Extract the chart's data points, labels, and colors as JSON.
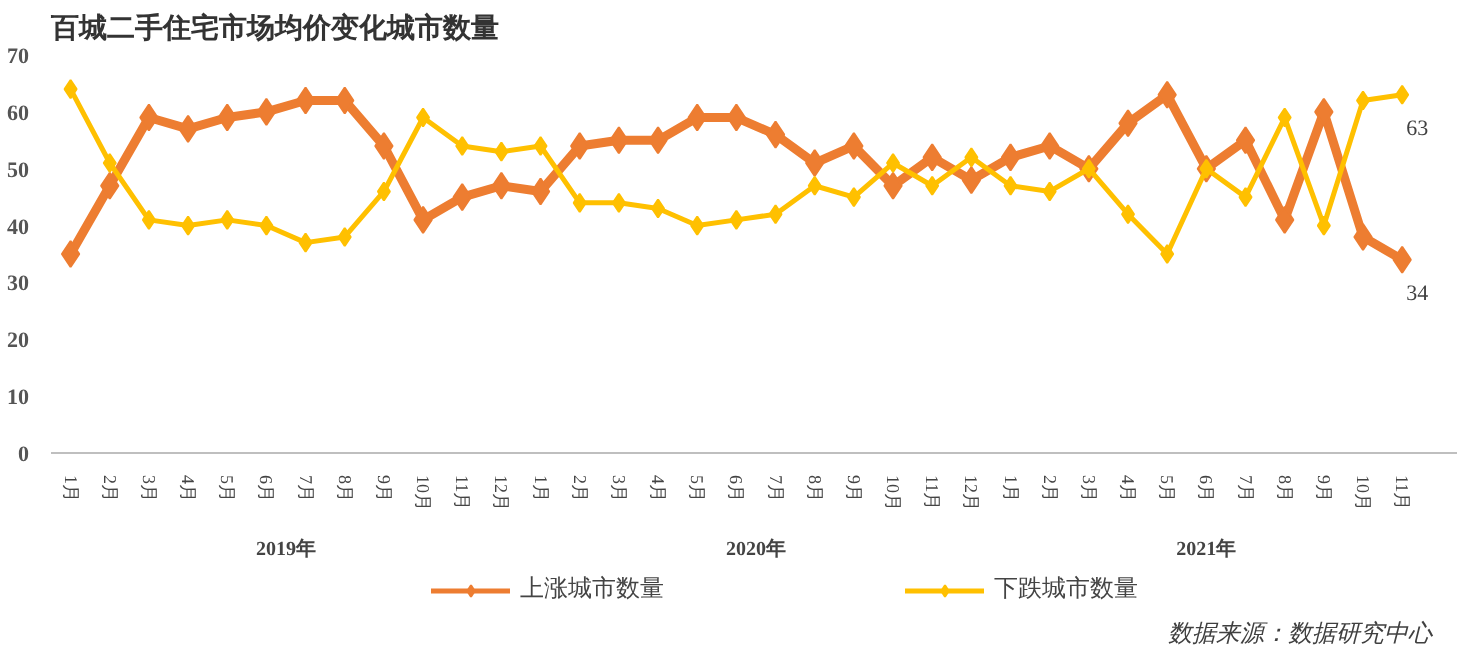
{
  "chart_data": {
    "type": "line",
    "title": "百城二手住宅市场均价变化城市数量",
    "categories": [
      "1月",
      "2月",
      "3月",
      "4月",
      "5月",
      "6月",
      "7月",
      "8月",
      "9月",
      "10月",
      "11月",
      "12月",
      "1月",
      "2月",
      "3月",
      "4月",
      "5月",
      "6月",
      "7月",
      "8月",
      "9月",
      "10月",
      "11月",
      "12月",
      "1月",
      "2月",
      "3月",
      "4月",
      "5月",
      "6月",
      "7月",
      "8月",
      "9月",
      "10月",
      "11月"
    ],
    "series": [
      {
        "name": "上涨城市数量",
        "color": "#ed7d31",
        "values": [
          35,
          47,
          59,
          57,
          59,
          60,
          62,
          62,
          54,
          41,
          45,
          47,
          46,
          54,
          55,
          55,
          59,
          59,
          56,
          51,
          54,
          47,
          52,
          48,
          52,
          54,
          50,
          58,
          63,
          50,
          55,
          41,
          60,
          38,
          34
        ],
        "value_labels": [
          null,
          null,
          null,
          null,
          null,
          null,
          null,
          null,
          null,
          null,
          null,
          null,
          null,
          null,
          null,
          null,
          null,
          null,
          null,
          null,
          null,
          null,
          null,
          null,
          null,
          null,
          null,
          null,
          null,
          null,
          null,
          null,
          null,
          null,
          "34"
        ]
      },
      {
        "name": "下跌城市数量",
        "color": "#ffc000",
        "values": [
          64,
          51,
          41,
          40,
          41,
          40,
          37,
          38,
          46,
          59,
          54,
          53,
          54,
          44,
          44,
          43,
          40,
          41,
          42,
          47,
          45,
          51,
          47,
          52,
          47,
          46,
          50,
          42,
          35,
          50,
          45,
          59,
          40,
          62,
          63
        ],
        "value_labels": [
          null,
          null,
          null,
          null,
          null,
          null,
          null,
          null,
          null,
          null,
          null,
          null,
          null,
          null,
          null,
          null,
          null,
          null,
          null,
          null,
          null,
          null,
          null,
          null,
          null,
          null,
          null,
          null,
          null,
          null,
          null,
          null,
          null,
          null,
          "63"
        ]
      }
    ],
    "ylim": [
      0,
      70
    ],
    "yticks": [
      0,
      10,
      20,
      30,
      40,
      50,
      60,
      70
    ],
    "grid": false,
    "legend": "bottom",
    "marker": "diamond",
    "line_style": "solid",
    "annotations": [
      "2019年",
      "2020年",
      "2021年",
      "数据来源：数据研究中心"
    ]
  }
}
